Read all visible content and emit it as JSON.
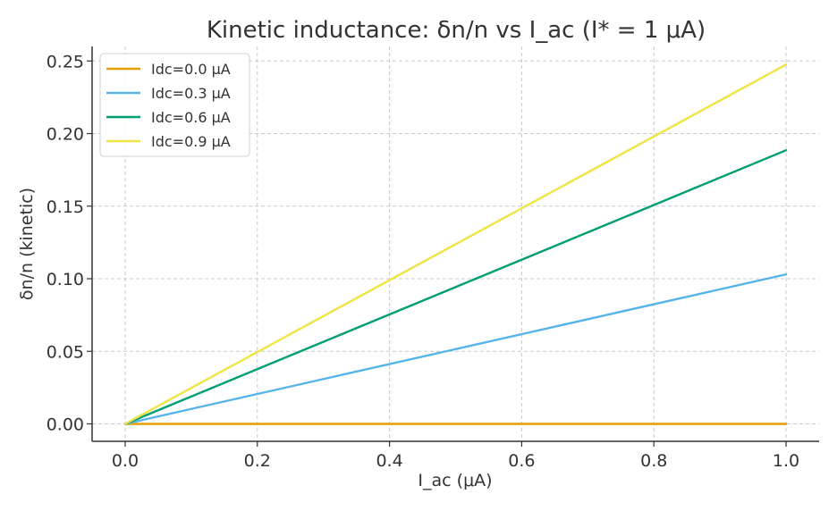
{
  "chart_data": {
    "type": "line",
    "title": "Kinetic inductance: δn/n vs I_ac (I* = 1 μA)",
    "xlabel": "I_ac (μA)",
    "ylabel": "δn/n (kinetic)",
    "xlim": [
      -0.05,
      1.05
    ],
    "ylim": [
      -0.012,
      0.26
    ],
    "xticks": [
      0.0,
      0.2,
      0.4,
      0.6,
      0.8,
      1.0
    ],
    "xtick_labels": [
      "0.0",
      "0.2",
      "0.4",
      "0.6",
      "0.8",
      "1.0"
    ],
    "yticks": [
      0.0,
      0.05,
      0.1,
      0.15,
      0.2,
      0.25
    ],
    "ytick_labels": [
      "0.00",
      "0.05",
      "0.10",
      "0.15",
      "0.20",
      "0.25"
    ],
    "grid": true,
    "legend_position": "top-left",
    "x": [
      0.0,
      1.0
    ],
    "series": [
      {
        "name": "Idc=0.0 μA",
        "color": "#E69F00",
        "values": [
          0.0,
          0.0
        ]
      },
      {
        "name": "Idc=0.3 μA",
        "color": "#56B4E9",
        "values": [
          0.0,
          0.103
        ]
      },
      {
        "name": "Idc=0.6 μA",
        "color": "#009E73",
        "values": [
          0.0,
          0.1885
        ]
      },
      {
        "name": "Idc=0.9 μA",
        "color": "#F0E442",
        "values": [
          0.0,
          0.2475
        ]
      }
    ]
  }
}
